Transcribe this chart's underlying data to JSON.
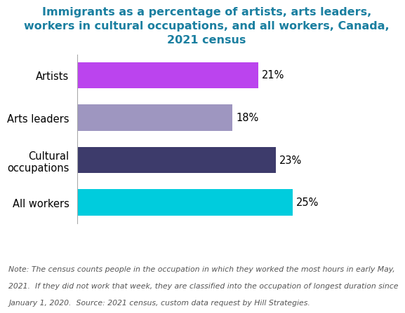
{
  "title": "Immigrants as a percentage of artists, arts leaders,\nworkers in cultural occupations, and all workers, Canada,\n2021 census",
  "title_color": "#1a7fa0",
  "title_fontsize": 11.5,
  "categories": [
    "All workers",
    "Cultural\noccupations",
    "Arts leaders",
    "Artists"
  ],
  "values": [
    25,
    23,
    18,
    21
  ],
  "bar_colors": [
    "#00CCDD",
    "#3D3B6B",
    "#9E96C0",
    "#BB44EE"
  ],
  "value_labels": [
    "25%",
    "23%",
    "18%",
    "21%"
  ],
  "xlim": [
    0,
    30
  ],
  "note_line1": "Note: The census counts people in the occupation in which they worked the most hours in early May,",
  "note_line2": "2021.  If they did not work that week, they are classified into the occupation of longest duration since",
  "note_line3": "January 1, 2020.  Source: 2021 census, custom data request by Hill Strategies.",
  "note_fontsize": 7.8,
  "note_color": "#555555",
  "bar_height": 0.62,
  "label_fontsize": 10.5,
  "value_fontsize": 10.5,
  "background_color": "#ffffff"
}
